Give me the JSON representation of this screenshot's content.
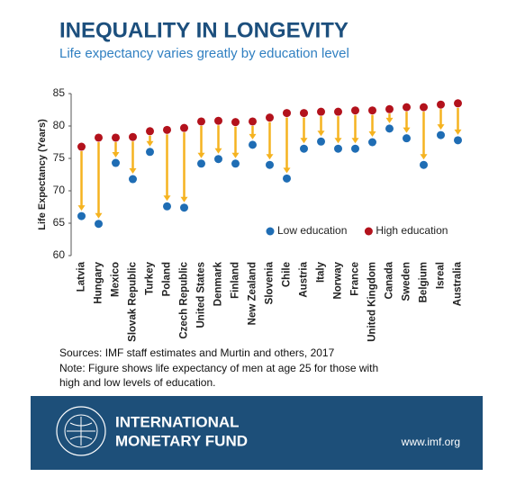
{
  "chart_data": {
    "type": "dumbbell",
    "title": "INEQUALITY IN LONGEVITY",
    "subtitle": "Life expectancy varies greatly by education level",
    "y_label": "Life Expectancy (Years)",
    "categories": [
      "Latvia",
      "Hungary",
      "Mexico",
      "Slovak Republic",
      "Turkey",
      "Poland",
      "Czech Republic",
      "United States",
      "Denmark",
      "Finland",
      "New Zealand",
      "Slovenia",
      "Chile",
      "Austria",
      "Italy",
      "Norway",
      "France",
      "United Kingdom",
      "Canada",
      "Sweden",
      "Belgium",
      "Isreal",
      "Australia"
    ],
    "series": [
      {
        "name": "Low education",
        "color": "#1f6db4",
        "values": [
          66.1,
          64.9,
          74.3,
          71.8,
          76.0,
          67.6,
          67.4,
          74.2,
          74.9,
          74.2,
          77.1,
          74.0,
          71.9,
          76.5,
          77.6,
          76.5,
          76.5,
          77.5,
          79.6,
          78.1,
          74.0,
          78.6,
          77.8
        ]
      },
      {
        "name": "High education",
        "color": "#b3121c",
        "values": [
          76.8,
          78.2,
          78.2,
          78.3,
          79.2,
          79.4,
          79.7,
          80.7,
          80.8,
          80.6,
          80.7,
          81.3,
          82.0,
          82.0,
          82.2,
          82.2,
          82.4,
          82.4,
          82.6,
          82.9,
          82.9,
          83.3,
          83.5
        ]
      }
    ],
    "arrow_color": "#f5b320",
    "ylim": [
      60,
      85
    ],
    "yticks": [
      60,
      65,
      70,
      75,
      80,
      85
    ],
    "legend": "lower right",
    "source": "Sources: IMF staff estimates and Murtin and others, 2017",
    "note": [
      "Note: Figure shows life expectancy of men at age 25 for those with",
      "high and low levels of education."
    ]
  },
  "footer": {
    "org": [
      "INTERNATIONAL",
      "MONETARY FUND"
    ],
    "url": "www.imf.org"
  }
}
